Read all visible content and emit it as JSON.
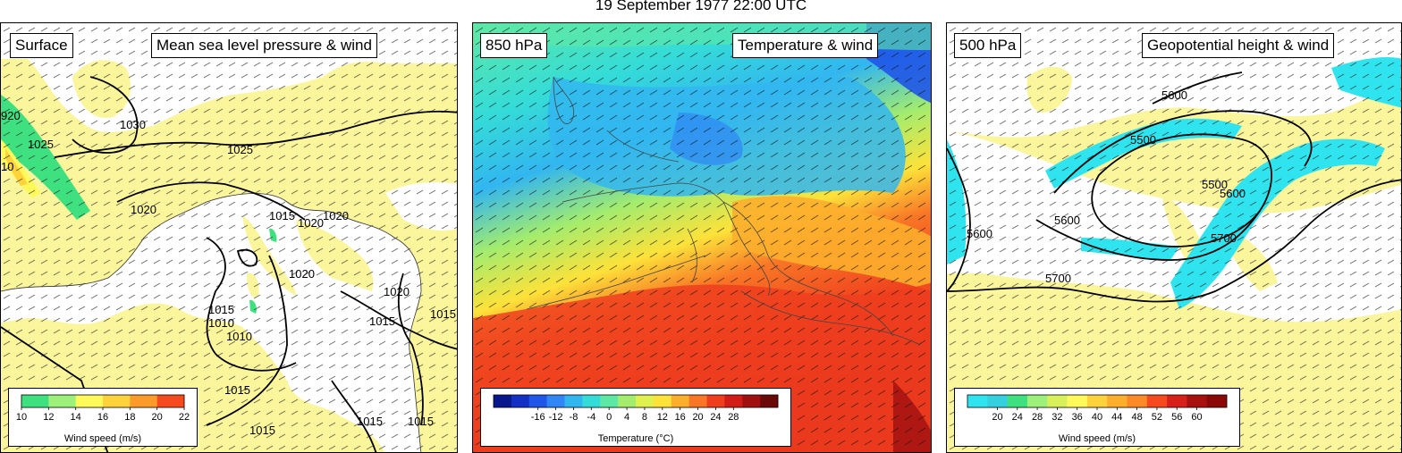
{
  "title": "19 September 1977 22:00 UTC",
  "panels": [
    {
      "level_label": "Surface",
      "field_label": "Mean sea level pressure & wind",
      "contour_labels": [
        "1030",
        "1025",
        "1025",
        "1020",
        "1020",
        "1015",
        "1020",
        "1020",
        "1020",
        "1015",
        "1015",
        "1015",
        "1010",
        "1015",
        "1015",
        "1015",
        "1015",
        "1015",
        "1010",
        "920",
        "10"
      ],
      "legend": {
        "title": "Wind speed (m/s)",
        "ticks": [
          "10",
          "12",
          "14",
          "16",
          "18",
          "20",
          "22"
        ],
        "colors": [
          "#3fe07f",
          "#9df07a",
          "#fffa5a",
          "#fed23a",
          "#fd9b2a",
          "#f6491d"
        ]
      }
    },
    {
      "level_label": "850 hPa",
      "field_label": "Temperature & wind",
      "legend": {
        "title": "Temperature (°C)",
        "ticks": [
          "-16",
          "-12",
          "-8",
          "-4",
          "0",
          "4",
          "8",
          "12",
          "16",
          "20",
          "24",
          "28"
        ],
        "colors": [
          "#08188c",
          "#1330c4",
          "#1f55e8",
          "#2f86f4",
          "#32b6f0",
          "#34dcd8",
          "#5ee8a6",
          "#a3ec6e",
          "#dff04f",
          "#fde23a",
          "#fdae2c",
          "#f97626",
          "#ef3e1e",
          "#d11c18",
          "#a01010",
          "#6b0808"
        ]
      }
    },
    {
      "level_label": "500 hPa",
      "field_label": "Geopotential height & wind",
      "contour_labels": [
        "5600",
        "5500",
        "5500",
        "5600",
        "5600",
        "5600",
        "5700",
        "5700"
      ],
      "legend": {
        "title": "Wind speed (m/s)",
        "ticks": [
          "20",
          "24",
          "28",
          "32",
          "36",
          "40",
          "44",
          "48",
          "52",
          "56",
          "60"
        ],
        "colors": [
          "#2fe4ee",
          "#34d0e0",
          "#3fe07f",
          "#9df07a",
          "#d8f05a",
          "#fffa5a",
          "#fed23a",
          "#fdae2c",
          "#fd8a26",
          "#f6491d",
          "#d8201a",
          "#a81010",
          "#8a0808"
        ]
      }
    }
  ]
}
